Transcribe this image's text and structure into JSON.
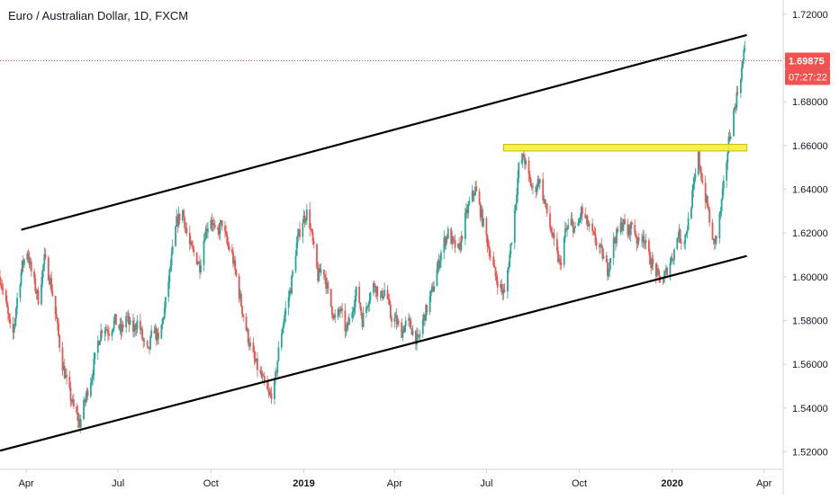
{
  "chart_data": {
    "type": "candlestick",
    "title": "Euro / Australian Dollar, 1D, FXCM",
    "ylim": [
      1.512,
      1.7265
    ],
    "x_range": [
      "2018-03-06",
      "2020-04-20"
    ],
    "y_ticks": [
      "1.52000",
      "1.54000",
      "1.56000",
      "1.58000",
      "1.60000",
      "1.62000",
      "1.64000",
      "1.66000",
      "1.68000",
      "1.70000",
      "1.72000"
    ],
    "x_ticks": [
      {
        "label": "Apr",
        "date": "2018-04-01",
        "bold": false
      },
      {
        "label": "Jul",
        "date": "2018-07-01",
        "bold": false
      },
      {
        "label": "Oct",
        "date": "2018-10-01",
        "bold": false
      },
      {
        "label": "2019",
        "date": "2019-01-01",
        "bold": true
      },
      {
        "label": "Apr",
        "date": "2019-04-01",
        "bold": false
      },
      {
        "label": "Jul",
        "date": "2019-07-01",
        "bold": false
      },
      {
        "label": "Oct",
        "date": "2019-10-01",
        "bold": false
      },
      {
        "label": "2020",
        "date": "2020-01-01",
        "bold": true
      },
      {
        "label": "Apr",
        "date": "2020-04-01",
        "bold": false
      }
    ],
    "last_price": {
      "value": 1.69875,
      "label": "1.69875",
      "countdown": "07:27:22",
      "color": "#ef5350"
    },
    "colors": {
      "up": "#26a69a",
      "down": "#ef5350",
      "trendline": "#000000",
      "zone_fill": "#f5ef3a",
      "zone_border": "#c9b700",
      "axis_text": "#131722",
      "axis_line": "#d1d4dc"
    },
    "trendlines": [
      {
        "name": "channel-upper",
        "from": {
          "date": "2018-03-27",
          "price": 1.6215
        },
        "to": {
          "date": "2020-03-15",
          "price": 1.7105
        }
      },
      {
        "name": "channel-lower",
        "from": {
          "date": "2018-03-06",
          "price": 1.5205
        },
        "to": {
          "date": "2020-03-15",
          "price": 1.6095
        }
      }
    ],
    "zone": {
      "name": "resistance-zone",
      "from_date": "2019-07-18",
      "to_date": "2020-03-15",
      "low": 1.6575,
      "high": 1.6605
    },
    "path_points": [
      [
        "2018-03-06",
        1.6
      ],
      [
        "2018-03-13",
        1.585
      ],
      [
        "2018-03-18",
        1.57
      ],
      [
        "2018-03-23",
        1.59
      ],
      [
        "2018-03-28",
        1.605
      ],
      [
        "2018-04-02",
        1.612
      ],
      [
        "2018-04-07",
        1.6
      ],
      [
        "2018-04-13",
        1.59
      ],
      [
        "2018-04-19",
        1.608
      ],
      [
        "2018-04-25",
        1.598
      ],
      [
        "2018-05-01",
        1.58
      ],
      [
        "2018-05-06",
        1.562
      ],
      [
        "2018-05-12",
        1.55
      ],
      [
        "2018-05-18",
        1.54
      ],
      [
        "2018-05-24",
        1.533
      ],
      [
        "2018-05-30",
        1.545
      ],
      [
        "2018-06-05",
        1.555
      ],
      [
        "2018-06-11",
        1.57
      ],
      [
        "2018-06-16",
        1.578
      ],
      [
        "2018-06-22",
        1.575
      ],
      [
        "2018-06-28",
        1.58
      ],
      [
        "2018-07-04",
        1.575
      ],
      [
        "2018-07-09",
        1.582
      ],
      [
        "2018-07-15",
        1.575
      ],
      [
        "2018-07-21",
        1.58
      ],
      [
        "2018-07-26",
        1.57
      ],
      [
        "2018-07-31",
        1.565
      ],
      [
        "2018-08-05",
        1.578
      ],
      [
        "2018-08-10",
        1.57
      ],
      [
        "2018-08-16",
        1.585
      ],
      [
        "2018-08-22",
        1.605
      ],
      [
        "2018-08-28",
        1.625
      ],
      [
        "2018-09-03",
        1.63
      ],
      [
        "2018-09-09",
        1.615
      ],
      [
        "2018-09-15",
        1.61
      ],
      [
        "2018-09-20",
        1.605
      ],
      [
        "2018-09-25",
        1.62
      ],
      [
        "2018-10-01",
        1.627
      ],
      [
        "2018-10-06",
        1.618
      ],
      [
        "2018-10-12",
        1.625
      ],
      [
        "2018-10-17",
        1.615
      ],
      [
        "2018-10-22",
        1.61
      ],
      [
        "2018-10-28",
        1.595
      ],
      [
        "2018-11-03",
        1.58
      ],
      [
        "2018-11-08",
        1.57
      ],
      [
        "2018-11-13",
        1.562
      ],
      [
        "2018-11-19",
        1.555
      ],
      [
        "2018-11-24",
        1.55
      ],
      [
        "2018-11-28",
        1.545
      ],
      [
        "2018-12-03",
        1.55
      ],
      [
        "2018-12-08",
        1.57
      ],
      [
        "2018-12-14",
        1.585
      ],
      [
        "2018-12-19",
        1.595
      ],
      [
        "2018-12-25",
        1.615
      ],
      [
        "2018-12-30",
        1.625
      ],
      [
        "2019-01-05",
        1.63
      ],
      [
        "2019-01-10",
        1.615
      ],
      [
        "2019-01-15",
        1.6
      ],
      [
        "2019-01-20",
        1.605
      ],
      [
        "2019-01-26",
        1.59
      ],
      [
        "2019-02-01",
        1.58
      ],
      [
        "2019-02-06",
        1.585
      ],
      [
        "2019-02-12",
        1.575
      ],
      [
        "2019-02-18",
        1.585
      ],
      [
        "2019-02-23",
        1.595
      ],
      [
        "2019-02-28",
        1.58
      ],
      [
        "2019-03-06",
        1.59
      ],
      [
        "2019-03-12",
        1.597
      ],
      [
        "2019-03-18",
        1.59
      ],
      [
        "2019-03-23",
        1.595
      ],
      [
        "2019-03-28",
        1.582
      ],
      [
        "2019-04-02",
        1.58
      ],
      [
        "2019-04-08",
        1.575
      ],
      [
        "2019-04-14",
        1.58
      ],
      [
        "2019-04-19",
        1.575
      ],
      [
        "2019-04-24",
        1.57
      ],
      [
        "2019-04-29",
        1.58
      ],
      [
        "2019-05-04",
        1.587
      ],
      [
        "2019-05-09",
        1.595
      ],
      [
        "2019-05-14",
        1.605
      ],
      [
        "2019-05-19",
        1.615
      ],
      [
        "2019-05-24",
        1.62
      ],
      [
        "2019-05-29",
        1.615
      ],
      [
        "2019-06-04",
        1.612
      ],
      [
        "2019-06-09",
        1.625
      ],
      [
        "2019-06-15",
        1.635
      ],
      [
        "2019-06-20",
        1.64
      ],
      [
        "2019-06-25",
        1.63
      ],
      [
        "2019-06-30",
        1.62
      ],
      [
        "2019-07-05",
        1.61
      ],
      [
        "2019-07-10",
        1.6
      ],
      [
        "2019-07-15",
        1.595
      ],
      [
        "2019-07-19",
        1.592
      ],
      [
        "2019-07-24",
        1.61
      ],
      [
        "2019-07-29",
        1.63
      ],
      [
        "2019-08-02",
        1.65
      ],
      [
        "2019-08-07",
        1.655
      ],
      [
        "2019-08-12",
        1.645
      ],
      [
        "2019-08-17",
        1.638
      ],
      [
        "2019-08-22",
        1.645
      ],
      [
        "2019-08-27",
        1.635
      ],
      [
        "2019-09-01",
        1.625
      ],
      [
        "2019-09-06",
        1.615
      ],
      [
        "2019-09-12",
        1.605
      ],
      [
        "2019-09-17",
        1.62
      ],
      [
        "2019-09-23",
        1.625
      ],
      [
        "2019-09-28",
        1.62
      ],
      [
        "2019-10-03",
        1.63
      ],
      [
        "2019-10-08",
        1.625
      ],
      [
        "2019-10-13",
        1.62
      ],
      [
        "2019-10-19",
        1.615
      ],
      [
        "2019-10-24",
        1.61
      ],
      [
        "2019-10-29",
        1.603
      ],
      [
        "2019-11-03",
        1.615
      ],
      [
        "2019-11-08",
        1.62
      ],
      [
        "2019-11-13",
        1.625
      ],
      [
        "2019-11-18",
        1.62
      ],
      [
        "2019-11-23",
        1.625
      ],
      [
        "2019-11-28",
        1.615
      ],
      [
        "2019-12-03",
        1.62
      ],
      [
        "2019-12-08",
        1.61
      ],
      [
        "2019-12-13",
        1.605
      ],
      [
        "2019-12-18",
        1.6
      ],
      [
        "2019-12-23",
        1.598
      ],
      [
        "2019-12-28",
        1.605
      ],
      [
        "2020-01-02",
        1.61
      ],
      [
        "2020-01-07",
        1.62
      ],
      [
        "2020-01-12",
        1.615
      ],
      [
        "2020-01-17",
        1.625
      ],
      [
        "2020-01-22",
        1.64
      ],
      [
        "2020-01-27",
        1.655
      ],
      [
        "2020-02-01",
        1.64
      ],
      [
        "2020-02-06",
        1.63
      ],
      [
        "2020-02-10",
        1.615
      ],
      [
        "2020-02-14",
        1.618
      ],
      [
        "2020-02-18",
        1.63
      ],
      [
        "2020-02-22",
        1.645
      ],
      [
        "2020-02-26",
        1.662
      ],
      [
        "2020-03-02",
        1.675
      ],
      [
        "2020-03-06",
        1.685
      ],
      [
        "2020-03-10",
        1.695
      ],
      [
        "2020-03-13",
        1.705
      ],
      [
        "2020-03-15",
        1.6988
      ]
    ]
  }
}
